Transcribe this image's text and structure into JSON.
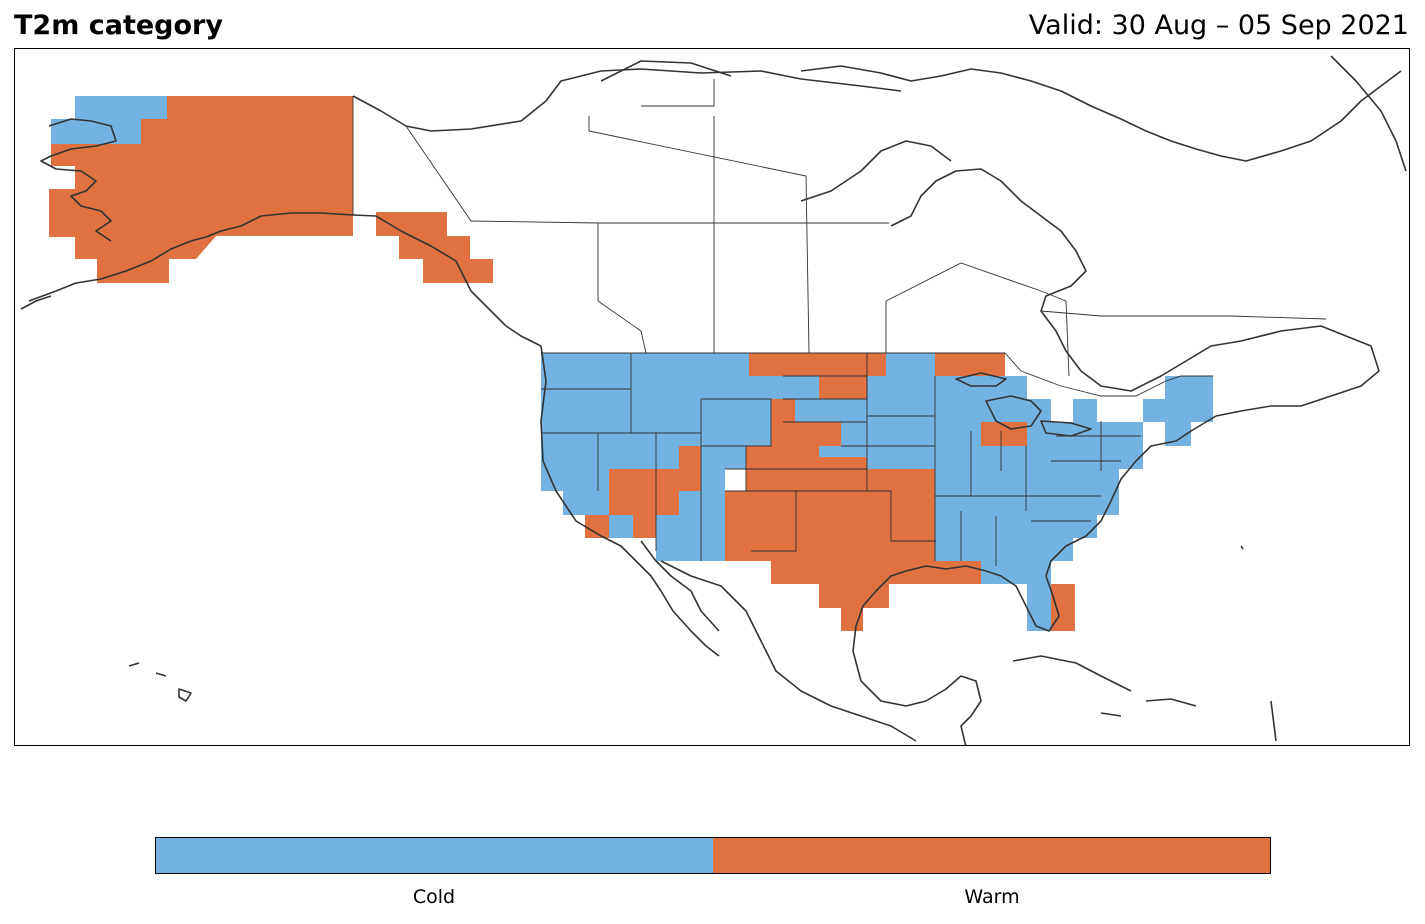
{
  "header": {
    "title": "T2m category",
    "valid": "Valid: 30 Aug – 05 Sep 2021"
  },
  "legend": {
    "categories": [
      {
        "label": "Cold",
        "color": "#74b3e1"
      },
      {
        "label": "Warm",
        "color": "#e07140"
      }
    ]
  },
  "colors": {
    "cold": "#74b3e1",
    "warm": "#e07140",
    "coastline": "#333333",
    "border": "#000000"
  }
}
